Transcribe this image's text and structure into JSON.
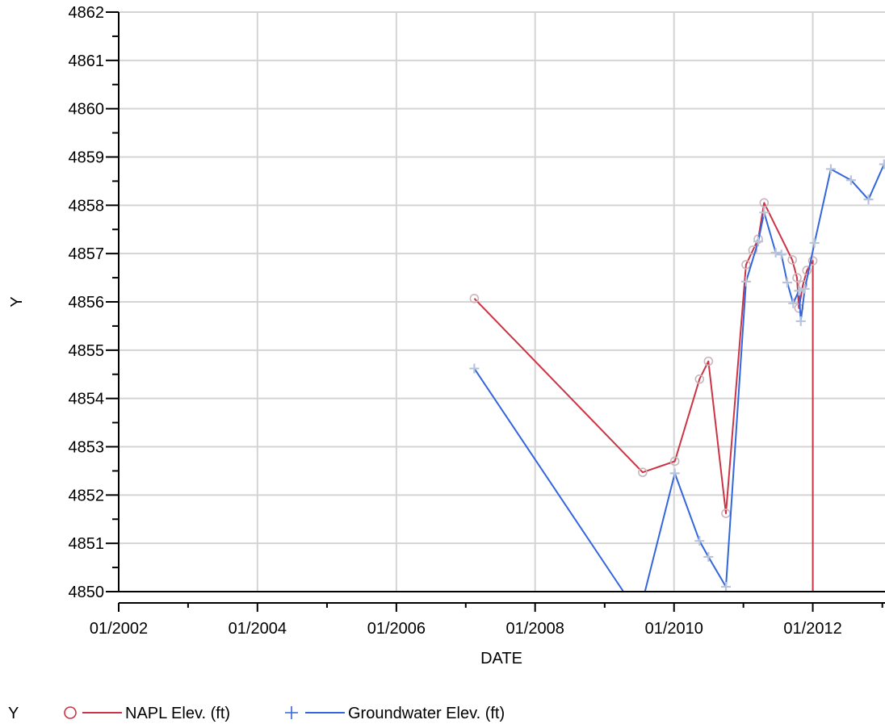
{
  "chart_data": {
    "type": "line",
    "title": "",
    "xlabel": "DATE",
    "ylabel": "Y",
    "x_axis": {
      "type": "date",
      "min": "2002-01-01",
      "max": "2013-01-15",
      "major_ticks": [
        "2002-01-01",
        "2004-01-01",
        "2006-01-01",
        "2008-01-01",
        "2010-01-01",
        "2012-01-01"
      ],
      "major_tick_labels": [
        "01/2002",
        "01/2004",
        "01/2006",
        "01/2008",
        "01/2010",
        "01/2012"
      ],
      "minor_ticks": [
        "2003-01-01",
        "2005-01-01",
        "2007-01-01",
        "2009-01-01",
        "2011-01-01",
        "2013-01-01"
      ]
    },
    "y_axis": {
      "min": 4850,
      "max": 4862,
      "major_ticks": [
        4850,
        4851,
        4852,
        4853,
        4854,
        4855,
        4856,
        4857,
        4858,
        4859,
        4860,
        4861,
        4862
      ],
      "major_tick_labels": [
        "4850",
        "4851",
        "4852",
        "4853",
        "4854",
        "4855",
        "4856",
        "4857",
        "4858",
        "4859",
        "4860",
        "4861",
        "4862"
      ]
    },
    "grid": true,
    "legend": {
      "title": "Y",
      "placement": "bottom-left"
    },
    "series": [
      {
        "name": "NAPL Elev. (ft)",
        "marker": "circle",
        "color": "#cc3344",
        "points": [
          {
            "x": "2007-02-15",
            "y": 4856.07
          },
          {
            "x": "2009-07-20",
            "y": 4852.47
          },
          {
            "x": "2010-01-05",
            "y": 4852.7
          },
          {
            "x": "2010-05-15",
            "y": 4854.4
          },
          {
            "x": "2010-07-01",
            "y": 4854.77
          },
          {
            "x": "2010-10-01",
            "y": 4851.62
          },
          {
            "x": "2011-01-15",
            "y": 4856.77
          },
          {
            "x": "2011-02-20",
            "y": 4857.07
          },
          {
            "x": "2011-03-20",
            "y": 4857.3
          },
          {
            "x": "2011-04-20",
            "y": 4858.05
          },
          {
            "x": "2011-09-15",
            "y": 4856.87
          },
          {
            "x": "2011-10-10",
            "y": 4856.5
          },
          {
            "x": "2011-10-20",
            "y": 4855.87
          },
          {
            "x": "2011-11-10",
            "y": 4856.35
          },
          {
            "x": "2011-12-01",
            "y": 4856.65
          },
          {
            "x": "2012-01-01",
            "y": 4856.85
          },
          {
            "x": "2012-01-01",
            "y": 4850.0
          }
        ]
      },
      {
        "name": "Groundwater Elev. (ft)",
        "marker": "plus",
        "color": "#3366dd",
        "points": [
          {
            "x": "2007-02-15",
            "y": 4854.62
          },
          {
            "x": "2009-04-10",
            "y": 4850.0
          },
          {
            "x": "2009-08-01",
            "y": 4850.0
          },
          {
            "x": "2010-01-05",
            "y": 4852.45
          },
          {
            "x": "2010-05-15",
            "y": 4851.05
          },
          {
            "x": "2010-07-01",
            "y": 4850.72
          },
          {
            "x": "2010-10-01",
            "y": 4850.1
          },
          {
            "x": "2011-01-15",
            "y": 4856.42
          },
          {
            "x": "2011-03-20",
            "y": 4857.25
          },
          {
            "x": "2011-04-20",
            "y": 4857.85
          },
          {
            "x": "2011-06-20",
            "y": 4857.02
          },
          {
            "x": "2011-07-20",
            "y": 4856.98
          },
          {
            "x": "2011-08-20",
            "y": 4856.4
          },
          {
            "x": "2011-09-20",
            "y": 4855.97
          },
          {
            "x": "2011-10-20",
            "y": 4856.23
          },
          {
            "x": "2011-10-30",
            "y": 4855.6
          },
          {
            "x": "2011-11-20",
            "y": 4856.27
          },
          {
            "x": "2012-01-10",
            "y": 4857.22
          },
          {
            "x": "2012-04-05",
            "y": 4858.75
          },
          {
            "x": "2012-07-20",
            "y": 4858.52
          },
          {
            "x": "2012-10-20",
            "y": 4858.12
          },
          {
            "x": "2013-01-10",
            "y": 4858.85
          }
        ]
      }
    ]
  }
}
